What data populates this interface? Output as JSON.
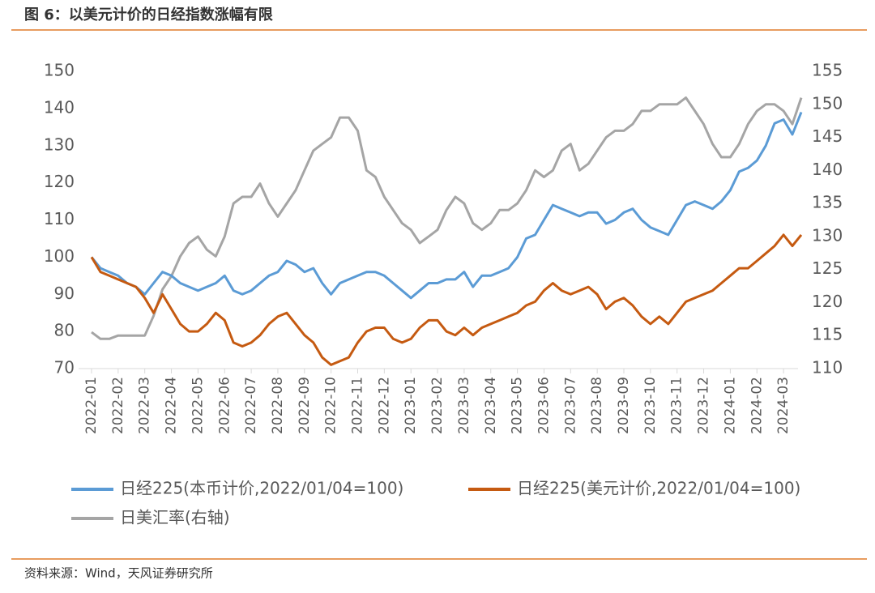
{
  "chart_data": {
    "type": "line",
    "title": "图 6：以美元计价的日经指数涨幅有限",
    "source": "资料来源：Wind，天风证券研究所",
    "categories": [
      "2022-01",
      null,
      null,
      "2022-02",
      null,
      null,
      "2022-03",
      null,
      null,
      "2022-04",
      null,
      null,
      "2022-05",
      null,
      null,
      "2022-06",
      null,
      null,
      "2022-07",
      null,
      null,
      "2022-08",
      null,
      null,
      "2022-09",
      null,
      null,
      "2022-10",
      null,
      null,
      "2022-11",
      null,
      null,
      "2022-12",
      null,
      null,
      "2023-01",
      null,
      null,
      "2023-02",
      null,
      null,
      "2023-03",
      null,
      null,
      "2023-04",
      null,
      null,
      "2023-05",
      null,
      null,
      "2023-06",
      null,
      null,
      "2023-07",
      null,
      null,
      "2023-08",
      null,
      null,
      "2023-09",
      null,
      null,
      "2023-10",
      null,
      null,
      "2023-11",
      null,
      null,
      "2023-12",
      null,
      null,
      "2024-01",
      null,
      null,
      "2024-02",
      null,
      null,
      "2024-03",
      null,
      null
    ],
    "series": [
      {
        "name": "日经225(本币计价,2022/01/04=100)",
        "color": "#5b9bd5",
        "values": [
          100,
          97,
          96,
          95,
          93,
          92,
          90,
          93,
          96,
          95,
          93,
          92,
          91,
          92,
          93,
          95,
          91,
          90,
          91,
          93,
          95,
          96,
          99,
          98,
          96,
          97,
          93,
          90,
          93,
          94,
          95,
          96,
          96,
          95,
          93,
          91,
          89,
          91,
          93,
          93,
          94,
          94,
          96,
          92,
          95,
          95,
          96,
          97,
          100,
          105,
          106,
          110,
          114,
          113,
          112,
          111,
          112,
          112,
          109,
          110,
          112,
          113,
          110,
          108,
          107,
          106,
          110,
          114,
          115,
          114,
          113,
          115,
          118,
          123,
          124,
          126,
          130,
          136,
          137,
          133,
          139
        ]
      },
      {
        "name": "日经225(美元计价,2022/01/04=100)",
        "color": "#c55a11",
        "values": [
          100,
          96,
          95,
          94,
          93,
          92,
          89,
          85,
          90,
          86,
          82,
          80,
          80,
          82,
          85,
          83,
          77,
          76,
          77,
          79,
          82,
          84,
          85,
          82,
          79,
          77,
          73,
          71,
          72,
          73,
          77,
          80,
          81,
          81,
          78,
          77,
          78,
          81,
          83,
          83,
          80,
          79,
          81,
          79,
          81,
          82,
          83,
          84,
          85,
          87,
          88,
          91,
          93,
          91,
          90,
          91,
          92,
          90,
          86,
          88,
          89,
          87,
          84,
          82,
          84,
          82,
          85,
          88,
          89,
          90,
          91,
          93,
          95,
          97,
          97,
          99,
          101,
          103,
          106,
          103,
          106
        ]
      },
      {
        "name": "日美汇率(右轴)",
        "color": "#a5a5a5",
        "axis": "y2",
        "values": [
          115.5,
          114.5,
          114.5,
          115,
          115,
          115,
          115,
          118,
          122,
          124,
          127,
          129,
          130,
          128,
          127,
          130,
          135,
          136,
          136,
          138,
          135,
          133,
          135,
          137,
          140,
          143,
          144,
          145,
          148,
          148,
          146,
          140,
          139,
          136,
          134,
          132,
          131,
          129,
          130,
          131,
          134,
          136,
          135,
          132,
          131,
          132,
          134,
          134,
          135,
          137,
          140,
          139,
          140,
          143,
          144,
          140,
          141,
          143,
          145,
          146,
          146,
          147,
          149,
          149,
          150,
          150,
          150,
          151,
          149,
          147,
          144,
          142,
          142,
          144,
          147,
          149,
          150,
          150,
          149,
          147,
          151
        ]
      }
    ],
    "ylim": [
      70,
      150
    ],
    "yticks": [
      70,
      80,
      90,
      100,
      110,
      120,
      130,
      140,
      150
    ],
    "y2lim": [
      110,
      155
    ],
    "y2ticks": [
      110,
      115,
      120,
      125,
      130,
      135,
      140,
      145,
      150,
      155
    ],
    "legend": "bottom"
  }
}
